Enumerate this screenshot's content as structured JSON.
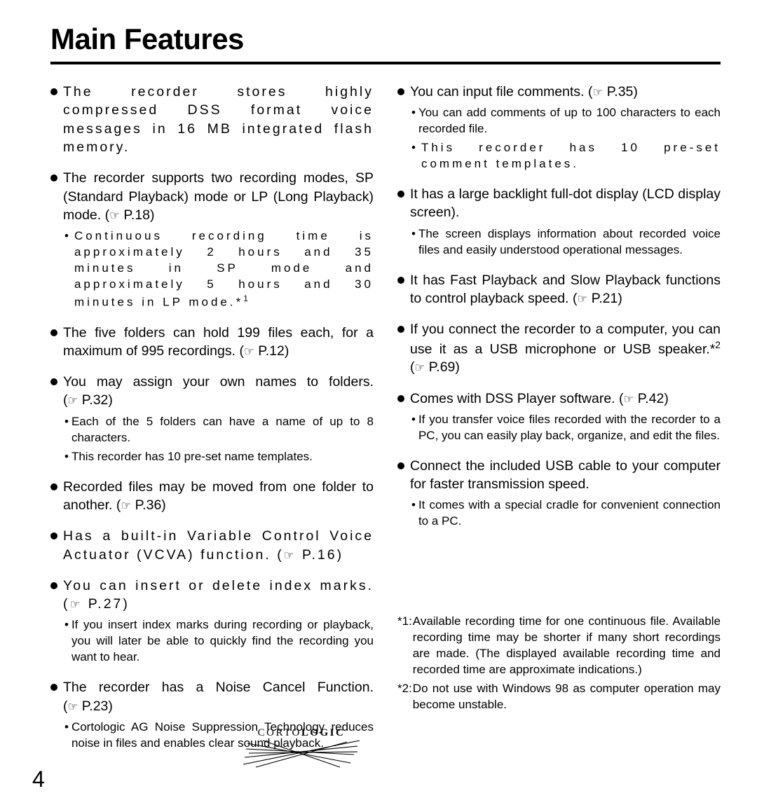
{
  "page": {
    "title": "Main Features",
    "page_number": "4",
    "logo": {
      "left": "CORTO",
      "right": "LOGIC"
    }
  },
  "columns": [
    {
      "features": [
        {
          "text": "The recorder stores highly compressed DSS format voice messages in 16 MB integrated flash memory.",
          "wide": true
        },
        {
          "text": "The recorder supports two recording modes, SP (Standard Playback) mode or LP (Long Playback) mode.",
          "ref": "P.18",
          "subs": [
            {
              "text": "Continuous recording time is approximately 2 hours and 35 minutes in SP mode and approximately 5 hours and 30 minutes in LP mode.*",
              "sup": "1",
              "wide": true
            }
          ]
        },
        {
          "text": "The five folders can hold 199 files each, for a maximum of 995 recordings.",
          "ref": "P.12"
        },
        {
          "text": "You may assign your own names to folders.",
          "ref": "P.32",
          "subs": [
            {
              "text": "Each of the 5 folders can have a name of up to 8 characters."
            },
            {
              "text": "This recorder has 10 pre-set name templates."
            }
          ]
        },
        {
          "text": "Recorded files may be moved from one folder to another.",
          "ref": "P.36"
        },
        {
          "text": "Has a built-in Variable Control Voice Actuator (VCVA) function.",
          "ref": "P.16",
          "wide": true
        },
        {
          "text": "You can insert or delete index marks.",
          "ref": "P.27",
          "wide": true,
          "subs": [
            {
              "text": "If you insert index marks during recording or playback, you will later be able to quickly find the recording you want to hear."
            }
          ]
        },
        {
          "text": "The recorder has a Noise Cancel Function.",
          "ref": "P.23",
          "subs": [
            {
              "text": "Cortologic AG Noise Suppression Technology reduces noise in files and enables clear sound playback."
            }
          ]
        }
      ]
    },
    {
      "features": [
        {
          "text": "You can input file comments.",
          "ref": "P.35",
          "subs": [
            {
              "text": "You can add comments of up to 100 characters to each recorded file."
            },
            {
              "text": "This recorder has 10 pre-set comment templates.",
              "wide": true
            }
          ]
        },
        {
          "text": "It has a large backlight full-dot display (LCD display screen).",
          "subs": [
            {
              "text": "The screen displays information about recorded voice files and easily understood operational messages."
            }
          ]
        },
        {
          "text": "It has Fast Playback and Slow Playback functions to control playback speed.",
          "ref": "P.21"
        },
        {
          "text": "If you connect the recorder to a computer, you can use it as a USB microphone or USB speaker.*",
          "sup": "2",
          "ref": "P.69"
        },
        {
          "text": "Comes with DSS Player software.",
          "ref": "P.42",
          "subs": [
            {
              "text": "If you transfer voice files recorded with the recorder to a PC, you can easily play back, organize, and edit the files."
            }
          ]
        },
        {
          "text": "Connect the included USB cable to your computer for faster transmission speed.",
          "subs": [
            {
              "text": "It comes with a special cradle for convenient connection to a PC."
            }
          ]
        }
      ],
      "footnotes": [
        {
          "label": "*1:",
          "text": "Available recording time for one continuous file. Available recording time may be shorter if many short recordings are made. (The displayed available recording time and recorded time are approximate indications.)"
        },
        {
          "label": "*2:",
          "text": "Do not use with Windows 98 as computer operation may become unstable."
        }
      ]
    }
  ]
}
